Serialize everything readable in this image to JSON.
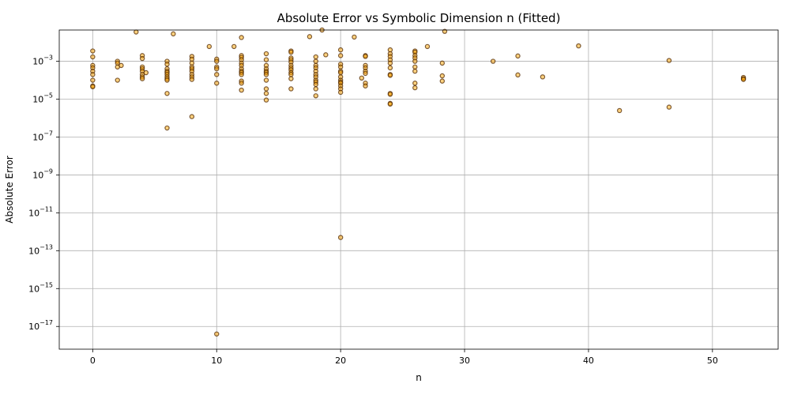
{
  "chart_data": {
    "type": "scatter",
    "title": "Absolute Error vs Symbolic Dimension n (Fitted)",
    "xlabel": "n",
    "ylabel": "Absolute Error",
    "xlim": [
      -2.7,
      55.3
    ],
    "ylim_log10": [
      -18.2,
      -1.35
    ],
    "yscale": "log",
    "grid": true,
    "x_ticks": [
      {
        "value": 0,
        "label": "0"
      },
      {
        "value": 10,
        "label": "10"
      },
      {
        "value": 20,
        "label": "20"
      },
      {
        "value": 30,
        "label": "30"
      },
      {
        "value": 40,
        "label": "40"
      },
      {
        "value": 50,
        "label": "50"
      }
    ],
    "y_ticks": [
      {
        "exp": -17,
        "base": "10",
        "power": "−17"
      },
      {
        "exp": -15,
        "base": "10",
        "power": "−15"
      },
      {
        "exp": -13,
        "base": "10",
        "power": "−13"
      },
      {
        "exp": -11,
        "base": "10",
        "power": "−11"
      },
      {
        "exp": -9,
        "base": "10",
        "power": "−9"
      },
      {
        "exp": -7,
        "base": "10",
        "power": "−7"
      },
      {
        "exp": -5,
        "base": "10",
        "power": "−5"
      },
      {
        "exp": -3,
        "base": "10",
        "power": "−3"
      }
    ],
    "marker_color": "#ffa500",
    "marker_edge_color": "#502800",
    "points": [
      {
        "x": 0,
        "y": 0.0035
      },
      {
        "x": 0,
        "y": 0.0017
      },
      {
        "x": 0,
        "y": 0.0006
      },
      {
        "x": 0,
        "y": 0.00045
      },
      {
        "x": 0,
        "y": 0.0003
      },
      {
        "x": 0,
        "y": 0.0002
      },
      {
        "x": 0,
        "y": 0.0001
      },
      {
        "x": 0,
        "y": 5e-05
      },
      {
        "x": 0,
        "y": 4.5e-05
      },
      {
        "x": 2,
        "y": 0.001
      },
      {
        "x": 2,
        "y": 0.0008
      },
      {
        "x": 2,
        "y": 0.0005
      },
      {
        "x": 2,
        "y": 0.0001
      },
      {
        "x": 2.3,
        "y": 0.0006
      },
      {
        "x": 3.5,
        "y": 0.035
      },
      {
        "x": 4,
        "y": 0.002
      },
      {
        "x": 4,
        "y": 0.0014
      },
      {
        "x": 4,
        "y": 0.0005
      },
      {
        "x": 4,
        "y": 0.0004
      },
      {
        "x": 4,
        "y": 0.0003
      },
      {
        "x": 4,
        "y": 0.0002
      },
      {
        "x": 4,
        "y": 0.00015
      },
      {
        "x": 4,
        "y": 0.00012
      },
      {
        "x": 4.3,
        "y": 0.00025
      },
      {
        "x": 6,
        "y": 0.001
      },
      {
        "x": 6,
        "y": 0.0007
      },
      {
        "x": 6,
        "y": 0.0004
      },
      {
        "x": 6,
        "y": 0.0003
      },
      {
        "x": 6,
        "y": 0.00025
      },
      {
        "x": 6,
        "y": 0.0002
      },
      {
        "x": 6,
        "y": 0.00015
      },
      {
        "x": 6,
        "y": 0.00012
      },
      {
        "x": 6,
        "y": 0.0001
      },
      {
        "x": 6,
        "y": 2e-05
      },
      {
        "x": 6,
        "y": 3e-07
      },
      {
        "x": 6.5,
        "y": 0.028
      },
      {
        "x": 8,
        "y": 0.0018
      },
      {
        "x": 8,
        "y": 0.0013
      },
      {
        "x": 8,
        "y": 0.0008
      },
      {
        "x": 8,
        "y": 0.0005
      },
      {
        "x": 8,
        "y": 0.0004
      },
      {
        "x": 8,
        "y": 0.0003
      },
      {
        "x": 8,
        "y": 0.0002
      },
      {
        "x": 8,
        "y": 0.00015
      },
      {
        "x": 8,
        "y": 0.00011
      },
      {
        "x": 8,
        "y": 1.2e-06
      },
      {
        "x": 9.4,
        "y": 0.006
      },
      {
        "x": 10,
        "y": 0.0013
      },
      {
        "x": 10,
        "y": 0.001
      },
      {
        "x": 10,
        "y": 0.0005
      },
      {
        "x": 10,
        "y": 0.0004
      },
      {
        "x": 10,
        "y": 0.0002
      },
      {
        "x": 10,
        "y": 7e-05
      },
      {
        "x": 10,
        "y": 4e-18
      },
      {
        "x": 11.4,
        "y": 0.006
      },
      {
        "x": 12,
        "y": 0.018
      },
      {
        "x": 12,
        "y": 0.002
      },
      {
        "x": 12,
        "y": 0.0016
      },
      {
        "x": 12,
        "y": 0.0012
      },
      {
        "x": 12,
        "y": 0.0008
      },
      {
        "x": 12,
        "y": 0.0006
      },
      {
        "x": 12,
        "y": 0.0004
      },
      {
        "x": 12,
        "y": 0.0003
      },
      {
        "x": 12,
        "y": 0.00025
      },
      {
        "x": 12,
        "y": 0.0002
      },
      {
        "x": 12,
        "y": 9e-05
      },
      {
        "x": 12,
        "y": 7e-05
      },
      {
        "x": 12,
        "y": 3e-05
      },
      {
        "x": 14,
        "y": 0.0025
      },
      {
        "x": 14,
        "y": 0.0012
      },
      {
        "x": 14,
        "y": 0.0006
      },
      {
        "x": 14,
        "y": 0.0004
      },
      {
        "x": 14,
        "y": 0.0003
      },
      {
        "x": 14,
        "y": 0.00025
      },
      {
        "x": 14,
        "y": 0.0002
      },
      {
        "x": 14,
        "y": 0.0001
      },
      {
        "x": 14,
        "y": 3.5e-05
      },
      {
        "x": 14,
        "y": 2e-05
      },
      {
        "x": 14,
        "y": 9e-06
      },
      {
        "x": 16,
        "y": 0.0035
      },
      {
        "x": 16,
        "y": 0.003
      },
      {
        "x": 16,
        "y": 0.0015
      },
      {
        "x": 16,
        "y": 0.0012
      },
      {
        "x": 16,
        "y": 0.0009
      },
      {
        "x": 16,
        "y": 0.0006
      },
      {
        "x": 16,
        "y": 0.00045
      },
      {
        "x": 16,
        "y": 0.00035
      },
      {
        "x": 16,
        "y": 0.00025
      },
      {
        "x": 16,
        "y": 0.0002
      },
      {
        "x": 16,
        "y": 0.00012
      },
      {
        "x": 16,
        "y": 3.5e-05
      },
      {
        "x": 17.5,
        "y": 0.02
      },
      {
        "x": 18,
        "y": 0.0017
      },
      {
        "x": 18,
        "y": 0.001
      },
      {
        "x": 18,
        "y": 0.0006
      },
      {
        "x": 18,
        "y": 0.00045
      },
      {
        "x": 18,
        "y": 0.0003
      },
      {
        "x": 18,
        "y": 0.0002
      },
      {
        "x": 18,
        "y": 0.00015
      },
      {
        "x": 18,
        "y": 0.0001
      },
      {
        "x": 18,
        "y": 8e-05
      },
      {
        "x": 18,
        "y": 6e-05
      },
      {
        "x": 18,
        "y": 3.5e-05
      },
      {
        "x": 18,
        "y": 1.5e-05
      },
      {
        "x": 18.5,
        "y": 0.045
      },
      {
        "x": 18.8,
        "y": 0.0022
      },
      {
        "x": 20,
        "y": 0.004
      },
      {
        "x": 20,
        "y": 0.002
      },
      {
        "x": 20,
        "y": 0.0007
      },
      {
        "x": 20,
        "y": 0.0005
      },
      {
        "x": 20,
        "y": 0.0003
      },
      {
        "x": 20,
        "y": 0.00025
      },
      {
        "x": 20,
        "y": 0.00015
      },
      {
        "x": 20,
        "y": 0.0001
      },
      {
        "x": 20,
        "y": 8e-05
      },
      {
        "x": 20,
        "y": 7e-05
      },
      {
        "x": 20,
        "y": 5e-05
      },
      {
        "x": 20,
        "y": 3.5e-05
      },
      {
        "x": 20,
        "y": 2.3e-05
      },
      {
        "x": 20,
        "y": 5e-13
      },
      {
        "x": 21.1,
        "y": 0.019
      },
      {
        "x": 21.7,
        "y": 0.00013
      },
      {
        "x": 22,
        "y": 0.002
      },
      {
        "x": 22,
        "y": 0.0018
      },
      {
        "x": 22,
        "y": 0.0006
      },
      {
        "x": 22,
        "y": 0.00045
      },
      {
        "x": 22,
        "y": 0.0003
      },
      {
        "x": 22,
        "y": 0.00023
      },
      {
        "x": 22,
        "y": 7e-05
      },
      {
        "x": 22,
        "y": 5e-05
      },
      {
        "x": 24,
        "y": 0.004
      },
      {
        "x": 24,
        "y": 0.0025
      },
      {
        "x": 24,
        "y": 0.0018
      },
      {
        "x": 24,
        "y": 0.0012
      },
      {
        "x": 24,
        "y": 0.0008
      },
      {
        "x": 24,
        "y": 0.00045
      },
      {
        "x": 24,
        "y": 0.0002
      },
      {
        "x": 24,
        "y": 0.00018
      },
      {
        "x": 24,
        "y": 2e-05
      },
      {
        "x": 24,
        "y": 1.8e-05
      },
      {
        "x": 24,
        "y": 6e-06
      },
      {
        "x": 24,
        "y": 5.5e-06
      },
      {
        "x": 26,
        "y": 0.0035
      },
      {
        "x": 26,
        "y": 0.003
      },
      {
        "x": 26,
        "y": 0.002
      },
      {
        "x": 26,
        "y": 0.0015
      },
      {
        "x": 26,
        "y": 0.001
      },
      {
        "x": 26,
        "y": 0.0005
      },
      {
        "x": 26,
        "y": 0.0003
      },
      {
        "x": 26,
        "y": 7e-05
      },
      {
        "x": 26,
        "y": 4e-05
      },
      {
        "x": 27,
        "y": 0.006
      },
      {
        "x": 28.2,
        "y": 0.0008
      },
      {
        "x": 28.2,
        "y": 0.00017
      },
      {
        "x": 28.2,
        "y": 9e-05
      },
      {
        "x": 28.4,
        "y": 0.038
      },
      {
        "x": 32.3,
        "y": 0.001
      },
      {
        "x": 34.3,
        "y": 0.0019
      },
      {
        "x": 34.3,
        "y": 0.00019
      },
      {
        "x": 36.3,
        "y": 0.00015
      },
      {
        "x": 39.2,
        "y": 0.0065
      },
      {
        "x": 42.5,
        "y": 2.5e-06
      },
      {
        "x": 46.5,
        "y": 0.0011
      },
      {
        "x": 46.5,
        "y": 3.8e-06
      },
      {
        "x": 52.5,
        "y": 0.00014
      },
      {
        "x": 52.5,
        "y": 0.00012
      },
      {
        "x": 52.5,
        "y": 0.00011
      }
    ]
  }
}
